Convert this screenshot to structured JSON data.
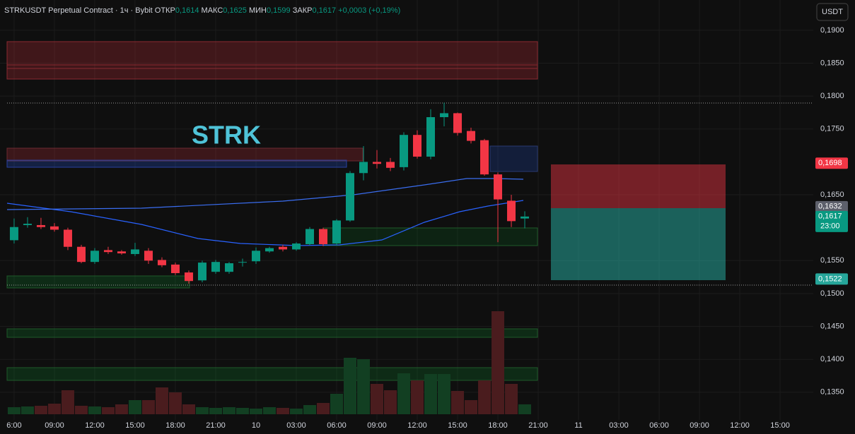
{
  "header": {
    "symbol": "STRKUSDT Perpetual Contract · 1ч · Bybit",
    "open_label": "ОТКР",
    "open": "0,1614",
    "high_label": "МАКС",
    "high": "0,1625",
    "low_label": "МИН",
    "low": "0,1599",
    "close_label": "ЗАКР",
    "close": "0,1617",
    "change": "+0,0003 (+0,19%)"
  },
  "currency_button": "USDT",
  "annotation": "STRK",
  "chart_data": {
    "type": "candlestick",
    "x": [
      0,
      1,
      2,
      3,
      4,
      5,
      6,
      7,
      8,
      9,
      10,
      11,
      12,
      13,
      14,
      15,
      16,
      17,
      18,
      19,
      20,
      21,
      22,
      23,
      24,
      25,
      26,
      27,
      28,
      29,
      30,
      31,
      32,
      33,
      34,
      35,
      36,
      37,
      38
    ],
    "open": [
      0.1581,
      0.1604,
      0.1604,
      0.1602,
      0.1597,
      0.1571,
      0.1548,
      0.1566,
      0.1564,
      0.156,
      0.1565,
      0.1551,
      0.1544,
      0.1532,
      0.152,
      0.1533,
      0.1533,
      0.1547,
      0.1549,
      0.1564,
      0.1571,
      0.1567,
      0.1575,
      0.1598,
      0.1576,
      0.1611,
      0.1683,
      0.17,
      0.17,
      0.1692,
      0.1741,
      0.1708,
      0.1768,
      0.1774,
      0.1747,
      0.1733,
      0.1681,
      0.1641,
      0.1614
    ],
    "high": [
      0.1614,
      0.1616,
      0.1615,
      0.1607,
      0.16,
      0.1574,
      0.1569,
      0.1571,
      0.1566,
      0.1577,
      0.1569,
      0.1555,
      0.1547,
      0.1535,
      0.155,
      0.1551,
      0.1548,
      0.1553,
      0.157,
      0.1571,
      0.1574,
      0.1578,
      0.1601,
      0.16,
      0.1613,
      0.1686,
      0.1724,
      0.1718,
      0.1706,
      0.1745,
      0.1748,
      0.178,
      0.179,
      0.1775,
      0.1752,
      0.1735,
      0.1684,
      0.165,
      0.1625
    ],
    "low": [
      0.1576,
      0.16,
      0.1598,
      0.1594,
      0.1566,
      0.1546,
      0.1545,
      0.156,
      0.1559,
      0.1557,
      0.1545,
      0.154,
      0.1528,
      0.1515,
      0.1517,
      0.153,
      0.153,
      0.1541,
      0.1545,
      0.1562,
      0.1564,
      0.1565,
      0.1573,
      0.1572,
      0.1573,
      0.1609,
      0.1672,
      0.169,
      0.1686,
      0.1687,
      0.1705,
      0.1704,
      0.1754,
      0.174,
      0.1728,
      0.1679,
      0.1578,
      0.1601,
      0.1599
    ],
    "close": [
      0.1601,
      0.1606,
      0.1601,
      0.1597,
      0.1571,
      0.1548,
      0.1565,
      0.1563,
      0.1561,
      0.1567,
      0.155,
      0.1543,
      0.1531,
      0.1519,
      0.1547,
      0.1548,
      0.1546,
      0.1548,
      0.1565,
      0.1569,
      0.1567,
      0.1576,
      0.1598,
      0.1575,
      0.1611,
      0.1683,
      0.17,
      0.1697,
      0.1691,
      0.1741,
      0.1708,
      0.1768,
      0.1774,
      0.1744,
      0.1732,
      0.1681,
      0.1643,
      0.161,
      0.1617
    ],
    "volume": [
      10,
      11,
      12,
      15,
      34,
      12,
      11,
      10,
      14,
      20,
      20,
      38,
      31,
      14,
      10,
      9,
      10,
      9,
      8,
      10,
      9,
      8,
      13,
      16,
      29,
      80,
      78,
      43,
      34,
      58,
      48,
      57,
      57,
      33,
      20,
      48,
      146,
      43,
      14
    ],
    "volume_lim": [
      0,
      160
    ],
    "up_color": "#089981",
    "down_color": "#f23645",
    "volume_up_color": "#123f22",
    "volume_down_color": "#4a1c1e",
    "xlim": [
      -1.05,
      59.47
    ],
    "ylim": [
      0.1308,
      0.1946
    ],
    "yticks": [
      {
        "value": 0.19,
        "label": "0,1900"
      },
      {
        "value": 0.185,
        "label": "0,1850"
      },
      {
        "value": 0.18,
        "label": "0,1800"
      },
      {
        "value": 0.175,
        "label": "0,1750"
      },
      {
        "value": 0.165,
        "label": "0,1650"
      },
      {
        "value": 0.155,
        "label": "0,1550"
      },
      {
        "value": 0.15,
        "label": "0,1500"
      },
      {
        "value": 0.145,
        "label": "0,1450"
      },
      {
        "value": 0.14,
        "label": "0,1400"
      },
      {
        "value": 0.135,
        "label": "0,1350"
      }
    ],
    "xticks": [
      {
        "value": 0,
        "label": "6:00"
      },
      {
        "value": 3,
        "label": "09:00"
      },
      {
        "value": 6,
        "label": "12:00"
      },
      {
        "value": 9,
        "label": "15:00"
      },
      {
        "value": 12,
        "label": "18:00"
      },
      {
        "value": 15,
        "label": "21:00"
      },
      {
        "value": 18,
        "label": "10"
      },
      {
        "value": 21,
        "label": "03:00"
      },
      {
        "value": 24,
        "label": "06:00"
      },
      {
        "value": 27,
        "label": "09:00"
      },
      {
        "value": 30,
        "label": "12:00"
      },
      {
        "value": 33,
        "label": "15:00"
      },
      {
        "value": 36,
        "label": "18:00"
      },
      {
        "value": 39,
        "label": "21:00"
      },
      {
        "value": 42,
        "label": "11"
      },
      {
        "value": 45,
        "label": "03:00"
      },
      {
        "value": 48,
        "label": "06:00"
      },
      {
        "value": 51,
        "label": "09:00"
      },
      {
        "value": 54,
        "label": "12:00"
      },
      {
        "value": 57,
        "label": "15:00"
      }
    ],
    "grid": true,
    "price_badges": [
      {
        "value": 0.1698,
        "label": "0,1698",
        "color": "#f23645"
      },
      {
        "value": 0.1632,
        "label": "0,1632",
        "color": "#5d606b"
      },
      {
        "value": 0.1617,
        "label": "0,1617",
        "sublabel": "23:00",
        "color": "#089981"
      },
      {
        "value": 0.1522,
        "label": "0,1522",
        "color": "#26a69a"
      }
    ]
  }
}
